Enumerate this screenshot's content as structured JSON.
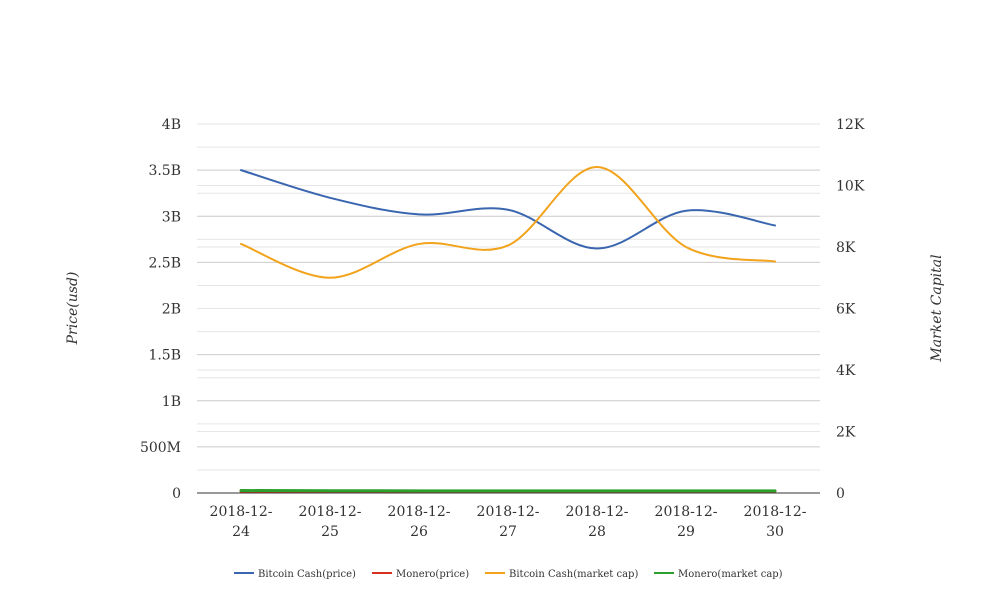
{
  "chart_data": {
    "type": "line",
    "categories": [
      "2018-12-24",
      "2018-12-25",
      "2018-12-26",
      "2018-12-27",
      "2018-12-28",
      "2018-12-29",
      "2018-12-30"
    ],
    "category_lines": [
      [
        "2018-12-",
        "24"
      ],
      [
        "2018-12-",
        "25"
      ],
      [
        "2018-12-",
        "26"
      ],
      [
        "2018-12-",
        "27"
      ],
      [
        "2018-12-",
        "28"
      ],
      [
        "2018-12-",
        "29"
      ],
      [
        "2018-12-",
        "30"
      ]
    ],
    "ylabel": "Price(usd)",
    "y2label": "Market Capital",
    "ylim": [
      0,
      4000000000
    ],
    "y2lim": [
      0,
      12000
    ],
    "y_ticks": [
      {
        "value": 0,
        "label": "0"
      },
      {
        "value": 500000000,
        "label": "500M"
      },
      {
        "value": 1000000000,
        "label": "1B"
      },
      {
        "value": 1500000000,
        "label": "1.5B"
      },
      {
        "value": 2000000000,
        "label": "2B"
      },
      {
        "value": 2500000000,
        "label": "2.5B"
      },
      {
        "value": 3000000000,
        "label": "3B"
      },
      {
        "value": 3500000000,
        "label": "3.5B"
      },
      {
        "value": 4000000000,
        "label": "4B"
      }
    ],
    "y2_ticks": [
      {
        "value": 0,
        "label": "0"
      },
      {
        "value": 2000,
        "label": "2K"
      },
      {
        "value": 4000,
        "label": "4K"
      },
      {
        "value": 6000,
        "label": "6K"
      },
      {
        "value": 8000,
        "label": "8K"
      },
      {
        "value": 10000,
        "label": "10K"
      },
      {
        "value": 12000,
        "label": "12K"
      }
    ],
    "grid": true,
    "legend_position": "bottom-center",
    "series": [
      {
        "name": "Bitcoin Cash(price)",
        "axis": "left",
        "color": "#3a66b0",
        "values": [
          3500000000,
          3200000000,
          3020000000,
          3070000000,
          2650000000,
          3060000000,
          2900000000
        ]
      },
      {
        "name": "Monero(price)",
        "axis": "left",
        "color": "#d7301f",
        "values": [
          20000000,
          20000000,
          20000000,
          20000000,
          20000000,
          20000000,
          20000000
        ]
      },
      {
        "name": "Bitcoin Cash(market cap)",
        "axis": "right",
        "color": "#f2a31b",
        "values": [
          8100,
          7000,
          8100,
          8050,
          10600,
          8000,
          7530
        ]
      },
      {
        "name": "Monero(market cap)",
        "axis": "right",
        "color": "#2ca02c",
        "values": [
          80,
          75,
          70,
          70,
          70,
          70,
          70
        ]
      }
    ]
  }
}
